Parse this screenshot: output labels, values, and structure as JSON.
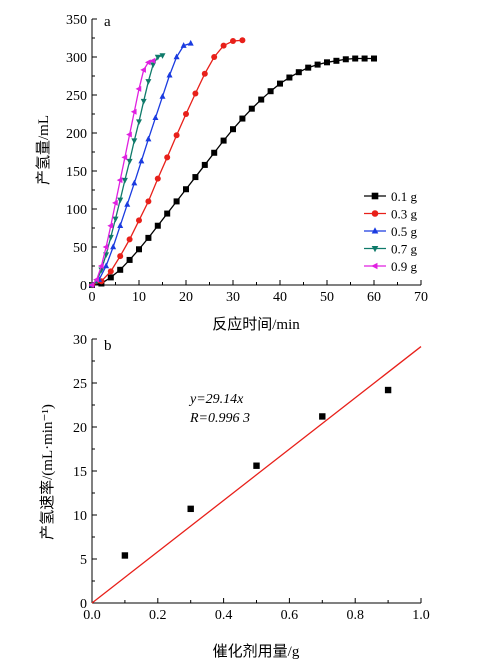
{
  "chart_data": [
    {
      "panel": "a",
      "type": "line",
      "xlabel": "反应时间/min",
      "ylabel": "产氢量/mL",
      "xlim": [
        0,
        70
      ],
      "ylim": [
        0,
        350
      ],
      "x_ticks": [
        "0",
        "10",
        "20",
        "30",
        "40",
        "50",
        "60",
        "70"
      ],
      "y_ticks": [
        "0",
        "50",
        "100",
        "150",
        "200",
        "250",
        "300",
        "350"
      ],
      "legend_position": "right",
      "grid": false,
      "series": [
        {
          "name": "0.1 g",
          "color": "#000000",
          "marker": "square",
          "x": [
            0,
            2,
            4,
            6,
            8,
            10,
            12,
            14,
            16,
            18,
            20,
            22,
            24,
            26,
            28,
            30,
            32,
            34,
            36,
            38,
            40,
            42,
            44,
            46,
            48,
            50,
            52,
            54,
            56,
            58,
            60
          ],
          "y": [
            0,
            2,
            10,
            20,
            33,
            47,
            62,
            78,
            94,
            110,
            126,
            142,
            158,
            174,
            190,
            205,
            219,
            232,
            244,
            255,
            265,
            273,
            280,
            286,
            290,
            293,
            295,
            297,
            298,
            298,
            298
          ]
        },
        {
          "name": "0.3 g",
          "color": "#e8201a",
          "marker": "circle",
          "x": [
            0,
            2,
            4,
            6,
            8,
            10,
            12,
            14,
            16,
            18,
            20,
            22,
            24,
            26,
            28,
            30,
            32
          ],
          "y": [
            0,
            5,
            18,
            38,
            60,
            85,
            110,
            140,
            168,
            197,
            225,
            252,
            278,
            300,
            315,
            321,
            322
          ]
        },
        {
          "name": "0.5 g",
          "color": "#1a3be0",
          "marker": "triangle-up",
          "x": [
            0,
            1.5,
            3,
            4.5,
            6,
            7.5,
            9,
            10.5,
            12,
            13.5,
            15,
            16.5,
            18,
            19.5,
            21
          ],
          "y": [
            0,
            7,
            25,
            50,
            78,
            106,
            134,
            163,
            192,
            220,
            248,
            276,
            300,
            315,
            318
          ]
        },
        {
          "name": "0.7 g",
          "color": "#0f7a6a",
          "marker": "triangle-down",
          "x": [
            0,
            1,
            2,
            3,
            4,
            5,
            6,
            7,
            8,
            9,
            10,
            11,
            12,
            13,
            14,
            15
          ],
          "y": [
            0,
            5,
            20,
            40,
            63,
            87,
            112,
            138,
            163,
            190,
            215,
            242,
            268,
            290,
            300,
            302
          ]
        },
        {
          "name": "0.9 g",
          "color": "#e020e0",
          "marker": "triangle-left",
          "x": [
            0,
            1,
            2,
            3,
            4,
            5,
            6,
            7,
            8,
            9,
            10,
            11,
            12,
            13
          ],
          "y": [
            0,
            7,
            25,
            50,
            78,
            108,
            138,
            168,
            198,
            228,
            258,
            283,
            293,
            295
          ]
        }
      ]
    },
    {
      "panel": "b",
      "type": "scatter",
      "xlabel": "催化剂用量/g",
      "ylabel": "产氢速率/(mL·min⁻¹)",
      "xlim": [
        0,
        1.0
      ],
      "ylim": [
        0,
        30
      ],
      "x_ticks": [
        "0.0",
        "0.2",
        "0.4",
        "0.6",
        "0.8",
        "1.0"
      ],
      "y_ticks": [
        "0",
        "5",
        "10",
        "15",
        "20",
        "25",
        "30"
      ],
      "grid": false,
      "points": {
        "x": [
          0.1,
          0.3,
          0.5,
          0.7,
          0.9
        ],
        "y": [
          5.4,
          10.7,
          15.6,
          21.2,
          24.2
        ]
      },
      "fit": {
        "slope": 29.14,
        "color": "#e8201a",
        "x_range": [
          0,
          1.0
        ]
      },
      "annotation_eq": "y=29.14x",
      "annotation_r": "R=0.996 3"
    }
  ]
}
